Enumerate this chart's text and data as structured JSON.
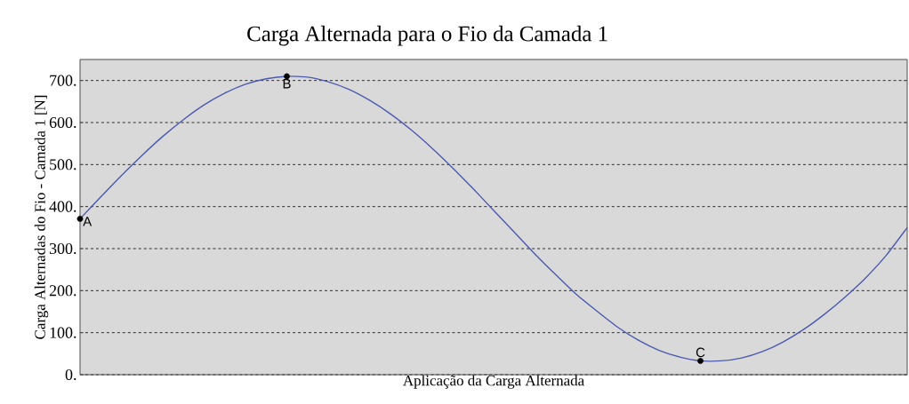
{
  "chart_data": {
    "type": "line",
    "title": "Carga Alternada para o Fio da Camada 1",
    "xlabel": "Aplicação da Carga Alternada",
    "ylabel": "Carga Alternadas do Fio - Camada 1 [N]",
    "categories": [
      null,
      null,
      null,
      null,
      null,
      null,
      null,
      null,
      null,
      null,
      null,
      null,
      null,
      null,
      null,
      null,
      null,
      null,
      null,
      null,
      null,
      null,
      null,
      null,
      null,
      null,
      null,
      null,
      null,
      null,
      null,
      null,
      null,
      null,
      null,
      null,
      null,
      null,
      null,
      null,
      null
    ],
    "series": [
      {
        "color": "#4a5ab0",
        "values": [
          371,
          423,
          474,
          522,
          567,
          607,
          642,
          670,
          691,
          704,
          710,
          708,
          697,
          679,
          653,
          621,
          583,
          540,
          493,
          443,
          391,
          339,
          287,
          238,
          191,
          151,
          113,
          82,
          58,
          42,
          33,
          33,
          40,
          55,
          78,
          108,
          144,
          185,
          231,
          285,
          350
        ]
      },
      {
        "type": "scatter",
        "color": "#000000",
        "marker": "circle",
        "values": [
          371,
          null,
          null,
          null,
          null,
          null,
          null,
          null,
          null,
          null,
          710,
          null,
          null,
          null,
          null,
          null,
          null,
          null,
          null,
          null,
          null,
          null,
          null,
          null,
          null,
          null,
          null,
          null,
          null,
          null,
          33,
          null,
          null,
          null,
          null,
          null,
          null,
          null,
          null,
          null,
          null
        ],
        "value_labels": [
          "A",
          null,
          null,
          null,
          null,
          null,
          null,
          null,
          null,
          null,
          "B",
          null,
          null,
          null,
          null,
          null,
          null,
          null,
          null,
          null,
          null,
          null,
          null,
          null,
          null,
          null,
          null,
          null,
          null,
          null,
          "C",
          null,
          null,
          null,
          null,
          null,
          null,
          null,
          null,
          null,
          null
        ]
      }
    ],
    "ylim": [
      0,
      750
    ],
    "yticks": [
      {
        "value": 0,
        "label": "0."
      },
      {
        "value": 100,
        "label": "100."
      },
      {
        "value": 200,
        "label": "200."
      },
      {
        "value": 300,
        "label": "300."
      },
      {
        "value": 400,
        "label": "400."
      },
      {
        "value": 500,
        "label": "500."
      },
      {
        "value": 600,
        "label": "600."
      },
      {
        "value": 700,
        "label": "700."
      }
    ],
    "grid": "y",
    "tick_labels": "y"
  }
}
